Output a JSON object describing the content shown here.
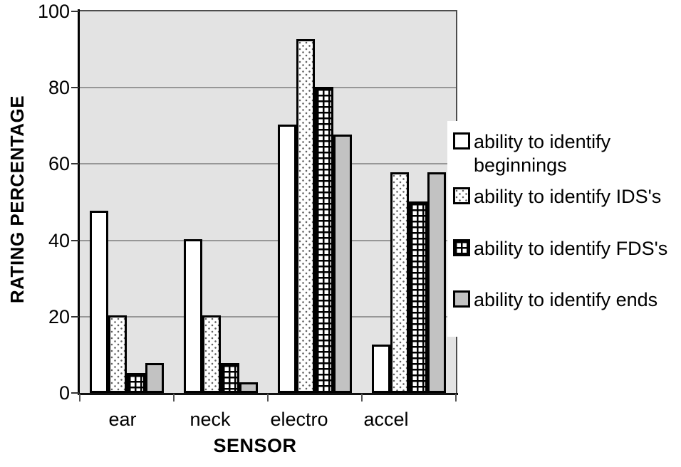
{
  "chart_data": {
    "type": "bar",
    "title": "",
    "xlabel": "SENSOR",
    "ylabel": "RATING PERCENTAGE",
    "ylim": [
      0,
      100
    ],
    "yticks": [
      0,
      20,
      40,
      60,
      80,
      100
    ],
    "categories": [
      "ear",
      "neck",
      "electro",
      "accel"
    ],
    "series": [
      {
        "name": "ability to identify beginnings",
        "pattern": "white",
        "values": [
          47.5,
          40,
          70,
          12.5
        ]
      },
      {
        "name": "ability to identify IDS's",
        "pattern": "dotted",
        "values": [
          20,
          20,
          92.5,
          57.5
        ]
      },
      {
        "name": "ability to identify FDS's",
        "pattern": "crosshatch",
        "values": [
          5,
          7.5,
          80,
          50
        ]
      },
      {
        "name": "ability to identify ends",
        "pattern": "gray",
        "values": [
          7.5,
          2.5,
          67.5,
          57.5
        ]
      }
    ],
    "legend_position": "right",
    "grid": true,
    "colors": {
      "plot_background": "#e3e3e3",
      "gridline": "#979797",
      "bar_border": "#000000",
      "gray_fill": "#c2c2c2",
      "text": "#000000"
    }
  }
}
